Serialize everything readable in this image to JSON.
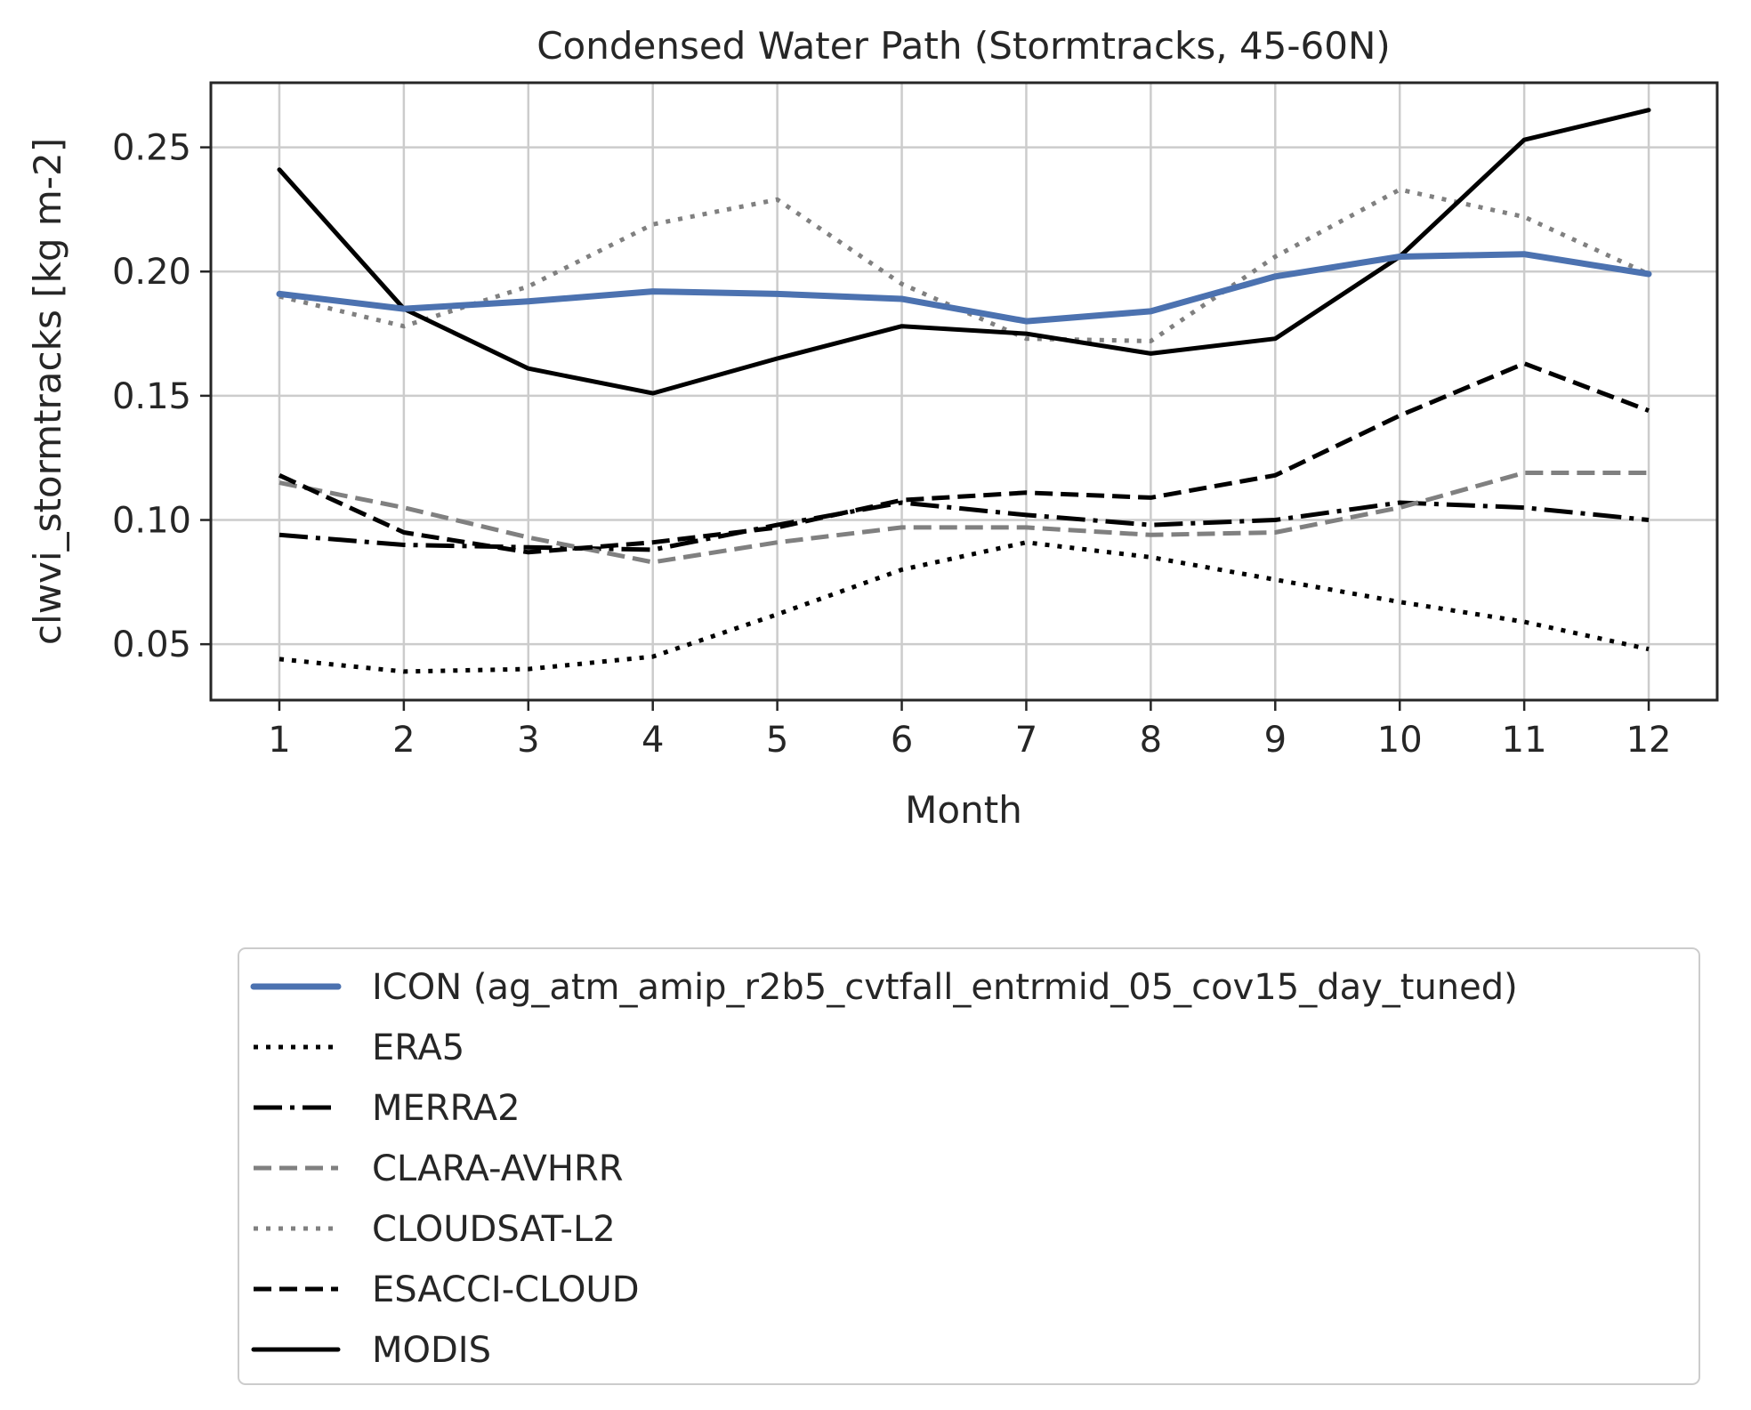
{
  "chart_data": {
    "type": "line",
    "title": "Condensed Water Path (Stormtracks, 45-60N)",
    "xlabel": "Month",
    "ylabel": "clwvi_stormtracks [kg m-2]",
    "x": [
      1,
      2,
      3,
      4,
      5,
      6,
      7,
      8,
      9,
      10,
      11,
      12
    ],
    "xticks": [
      "1",
      "2",
      "3",
      "4",
      "5",
      "6",
      "7",
      "8",
      "9",
      "10",
      "11",
      "12"
    ],
    "yticks": [
      "0.05",
      "0.10",
      "0.15",
      "0.20",
      "0.25"
    ],
    "ytick_values": [
      0.05,
      0.1,
      0.15,
      0.2,
      0.25
    ],
    "xlim": [
      0.45,
      12.55
    ],
    "ylim": [
      0.0275,
      0.276
    ],
    "grid": true,
    "legend_position": "bottom, below the plot",
    "series": [
      {
        "name": "ICON (ag_atm_amip_r2b5_cvtfall_entrmid_05_cov15_day_tuned)",
        "color": "#4c72b0",
        "style": "solid-thick",
        "values": [
          0.191,
          0.185,
          0.188,
          0.192,
          0.191,
          0.189,
          0.18,
          0.184,
          0.198,
          0.206,
          0.207,
          0.199
        ]
      },
      {
        "name": "ERA5",
        "color": "#000000",
        "style": "dotted",
        "values": [
          0.044,
          0.039,
          0.04,
          0.045,
          0.062,
          0.08,
          0.091,
          0.085,
          0.076,
          0.067,
          0.059,
          0.048
        ]
      },
      {
        "name": "MERRA2",
        "color": "#000000",
        "style": "dashdot",
        "values": [
          0.094,
          0.09,
          0.089,
          0.088,
          0.098,
          0.107,
          0.102,
          0.098,
          0.1,
          0.107,
          0.105,
          0.1
        ]
      },
      {
        "name": "CLARA-AVHRR",
        "color": "#808080",
        "style": "dashed",
        "values": [
          0.115,
          0.105,
          0.093,
          0.083,
          0.091,
          0.097,
          0.097,
          0.094,
          0.095,
          0.105,
          0.119,
          0.119
        ]
      },
      {
        "name": "CLOUDSAT-L2",
        "color": "#808080",
        "style": "dotted",
        "values": [
          0.19,
          0.178,
          0.194,
          0.219,
          0.229,
          0.195,
          0.173,
          0.172,
          0.206,
          0.233,
          0.222,
          0.199
        ]
      },
      {
        "name": "ESACCI-CLOUD",
        "color": "#000000",
        "style": "dashed",
        "values": [
          0.118,
          0.095,
          0.087,
          0.091,
          0.097,
          0.108,
          0.111,
          0.109,
          0.118,
          0.142,
          0.163,
          0.144
        ]
      },
      {
        "name": "MODIS",
        "color": "#000000",
        "style": "solid",
        "values": [
          0.241,
          0.185,
          0.161,
          0.151,
          0.165,
          0.178,
          0.175,
          0.167,
          0.173,
          0.206,
          0.253,
          0.265
        ]
      }
    ]
  }
}
